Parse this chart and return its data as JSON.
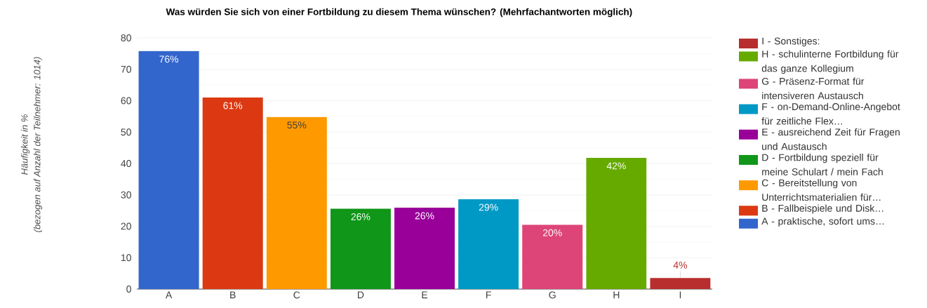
{
  "chart_data": {
    "type": "bar",
    "title": "Was würden Sie sich von einer Fortbildung zu diesem Thema wünschen? (Mehrfachantworten möglich)",
    "annotations": [
      "Häufigkeit in %",
      "(bezogen auf Anzahl der Teilnehmer: 1014)"
    ],
    "categories": [
      "A",
      "B",
      "C",
      "D",
      "E",
      "F",
      "G",
      "H",
      "I"
    ],
    "series": [
      {
        "name": "A - praktische, sofort ums…",
        "color": "#3366cc",
        "values": [
          75.8,
          null,
          null,
          null,
          null,
          null,
          null,
          null,
          null
        ]
      },
      {
        "name": "B - Fallbeispiele und Disk…",
        "color": "#dc3912",
        "values": [
          null,
          61,
          null,
          null,
          null,
          null,
          null,
          null,
          null
        ]
      },
      {
        "name": "C - Bereitstellung von Unterrichtsmaterialien für…",
        "color": "#ff9900",
        "values": [
          null,
          null,
          54.8,
          null,
          null,
          null,
          null,
          null,
          null
        ]
      },
      {
        "name": "D - Fortbildung speziell für meine Schulart / mein Fach",
        "color": "#109618",
        "values": [
          null,
          null,
          null,
          25.6,
          null,
          null,
          null,
          null,
          null
        ]
      },
      {
        "name": "E - ausreichend Zeit für Fragen und Austausch",
        "color": "#990099",
        "values": [
          null,
          null,
          null,
          null,
          25.9,
          null,
          null,
          null,
          null
        ]
      },
      {
        "name": "F - on-Demand-Online-Angebot für zeitliche Flex…",
        "color": "#0099c6",
        "values": [
          null,
          null,
          null,
          null,
          null,
          28.6,
          null,
          null,
          null
        ]
      },
      {
        "name": "G - Präsenz-Format für intensiveren Austausch",
        "color": "#dd4477",
        "values": [
          null,
          null,
          null,
          null,
          null,
          null,
          20.5,
          null,
          null
        ]
      },
      {
        "name": "H - schulinterne Fortbildung für das ganze Kollegium",
        "color": "#66aa00",
        "values": [
          null,
          null,
          null,
          null,
          null,
          null,
          null,
          41.8,
          null
        ]
      },
      {
        "name": "I - Sonstiges:",
        "color": "#b82e2e",
        "values": [
          null,
          null,
          null,
          null,
          null,
          null,
          null,
          null,
          3.5
        ]
      }
    ],
    "value_labels": [
      "76%",
      "61%",
      "55%",
      "26%",
      "26%",
      "29%",
      "20%",
      "42%",
      "4%"
    ],
    "ylim": [
      0,
      80
    ],
    "yticks": [
      0,
      10,
      20,
      30,
      40,
      50,
      60,
      70,
      80
    ],
    "grid": "y",
    "legend": "right"
  }
}
